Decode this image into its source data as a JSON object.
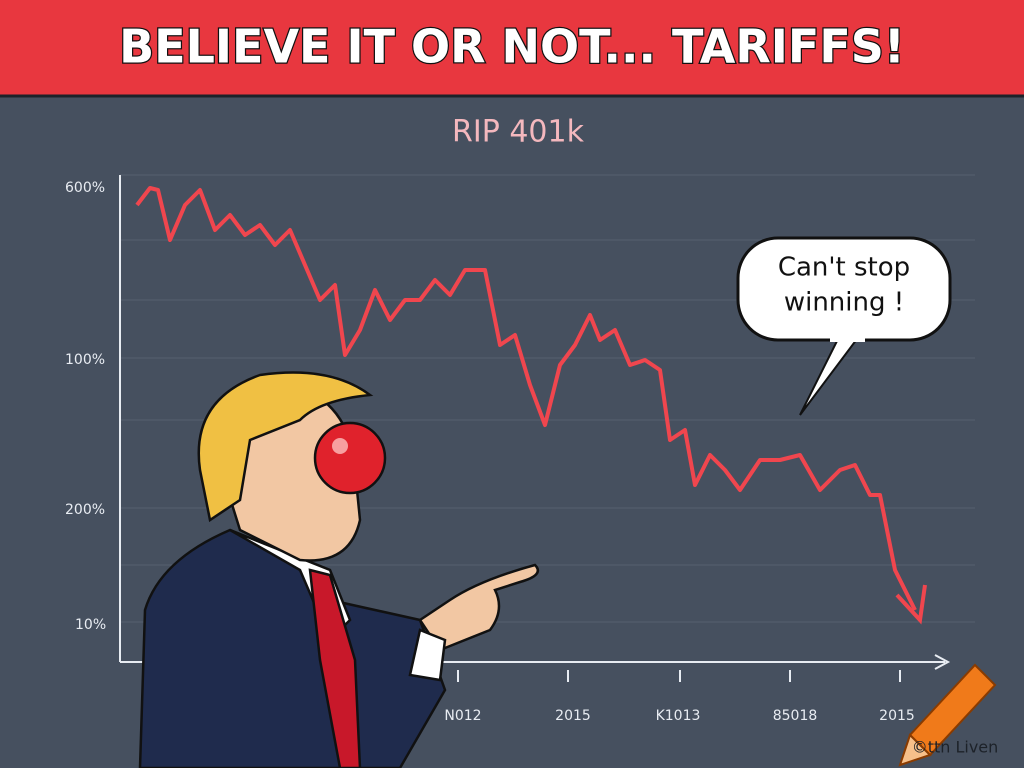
{
  "header": {
    "title": "BELIEVE IT OR NOT... TARIFFS!"
  },
  "chart": {
    "subtitle": "RIP 401k",
    "y_labels": [
      "600%",
      "100%",
      "200%",
      "10%"
    ],
    "x_labels": [
      "N012",
      "2015",
      "K1013",
      "85018",
      "2015"
    ]
  },
  "speech_bubble": {
    "lines": [
      "Can't stop",
      "winning !"
    ]
  },
  "watermark": "©ttn Liven"
}
